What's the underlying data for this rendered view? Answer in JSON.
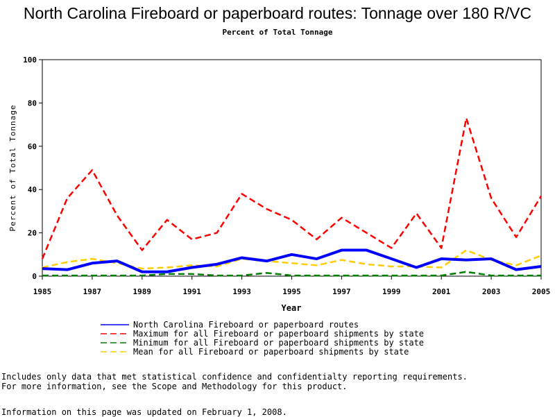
{
  "chart_data": {
    "type": "line",
    "title": "North Carolina Fireboard or paperboard routes: Tonnage over 180 R/VC",
    "subtitle": "Percent of Total Tonnage",
    "xlabel": "Year",
    "ylabel": "Percent of Total Tonnage",
    "xlim": [
      1985,
      2005
    ],
    "ylim": [
      0,
      100
    ],
    "x_ticks": [
      "1985",
      "1987",
      "1989",
      "1991",
      "1993",
      "1995",
      "1997",
      "1999",
      "2001",
      "2003",
      "2005"
    ],
    "y_ticks": [
      "0",
      "20",
      "40",
      "60",
      "80",
      "100"
    ],
    "grid": false,
    "legend_position": "bottom",
    "x": [
      1985,
      1986,
      1987,
      1988,
      1989,
      1990,
      1991,
      1992,
      1993,
      1994,
      1995,
      1996,
      1997,
      1998,
      1999,
      2000,
      2001,
      2002,
      2003,
      2004,
      2005
    ],
    "series": [
      {
        "name": "North Carolina Fireboard or paperboard routes",
        "color": "#0000ff",
        "style": "solid",
        "values": [
          3.5,
          3,
          6,
          7,
          2,
          2,
          4,
          5.5,
          8.5,
          7,
          10,
          8,
          12,
          12,
          8,
          4,
          8,
          7.5,
          8,
          3,
          4.5
        ]
      },
      {
        "name": "Maximum for all Fireboard or paperboard shipments by state",
        "color": "#ff0000",
        "style": "dashed",
        "values": [
          8,
          36,
          49,
          28,
          12,
          26,
          17,
          20,
          38,
          31,
          26,
          17,
          27,
          20,
          13,
          29,
          13,
          73,
          36,
          18,
          37
        ]
      },
      {
        "name": "Minimum for all Fireboard or paperboard shipments by state",
        "color": "#008000",
        "style": "dashed",
        "values": [
          0.3,
          0.3,
          0.3,
          0.3,
          0.3,
          1,
          1,
          0.3,
          0.3,
          1.5,
          0.3,
          0.3,
          0.3,
          0.3,
          0.3,
          0.3,
          0.3,
          2,
          0.3,
          0.3,
          0.3
        ]
      },
      {
        "name": "Mean for all Fireboard or paperboard shipments by state",
        "color": "#ffcc00",
        "style": "dashed",
        "values": [
          4,
          6.5,
          8,
          6,
          3.5,
          4,
          5,
          4.5,
          8,
          7,
          6,
          5,
          7.5,
          5.5,
          4.5,
          4.5,
          4,
          12,
          7.5,
          5,
          9.5
        ]
      }
    ]
  },
  "notes": [
    "Includes only data that met statistical confidence and confidentialty reporting requirements.",
    "For more information, see the Scope and Methodology for this product.",
    "Information on this page was updated on February 1, 2008."
  ]
}
